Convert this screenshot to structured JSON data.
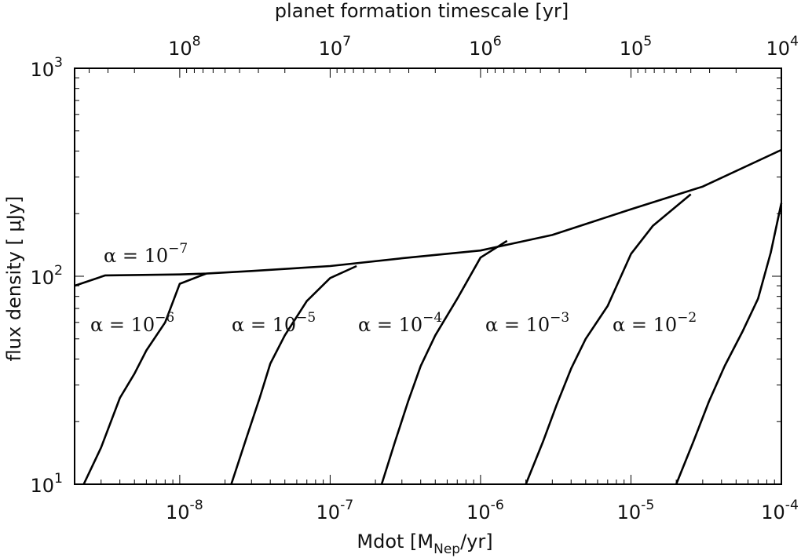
{
  "chart_data": {
    "type": "line",
    "x_axis": {
      "label": "Mdot [M_Nep/yr]",
      "label_main": "Mdot [M",
      "label_sub": "Nep",
      "label_tail": "/yr]",
      "scale": "log",
      "range": [
        2e-09,
        0.0001
      ],
      "ticks": [
        {
          "value": 1e-08,
          "base": "10",
          "exp": "-8"
        },
        {
          "value": 1e-07,
          "base": "10",
          "exp": "-7"
        },
        {
          "value": 1e-06,
          "base": "10",
          "exp": "-6"
        },
        {
          "value": 1e-05,
          "base": "10",
          "exp": "-5"
        },
        {
          "value": 0.0001,
          "base": "10",
          "exp": "-4"
        }
      ]
    },
    "x2_axis": {
      "label": "planet formation timescale [yr]",
      "scale": "log",
      "ticks": [
        {
          "value": 100000000.0,
          "base": "10",
          "exp": "8"
        },
        {
          "value": 10000000.0,
          "base": "10",
          "exp": "7"
        },
        {
          "value": 1000000.0,
          "base": "10",
          "exp": "6"
        },
        {
          "value": 100000.0,
          "base": "10",
          "exp": "5"
        },
        {
          "value": 10000.0,
          "base": "10",
          "exp": "4"
        }
      ]
    },
    "y_axis": {
      "label": "flux density [ μJy]",
      "scale": "log",
      "range": [
        10,
        1000
      ],
      "ticks": [
        {
          "value": 10,
          "base": "10",
          "exp": "1"
        },
        {
          "value": 100,
          "base": "10",
          "exp": "2"
        },
        {
          "value": 1000,
          "base": "10",
          "exp": "3"
        }
      ]
    },
    "grid": false,
    "series": [
      {
        "name": "α = 10^-7",
        "label_exp": "-7",
        "points": [
          [
            2e-09,
            90
          ],
          [
            3.2e-09,
            101
          ],
          [
            1e-08,
            102
          ],
          [
            1.5e-08,
            103
          ],
          [
            3e-08,
            106
          ],
          [
            1e-07,
            112
          ],
          [
            3e-07,
            122
          ],
          [
            1e-06,
            133
          ],
          [
            3e-06,
            158
          ],
          [
            1e-05,
            210
          ],
          [
            3e-05,
            270
          ],
          [
            0.0001,
            405
          ]
        ]
      },
      {
        "name": "α = 10^-6",
        "label_exp": "-6",
        "points": [
          [
            2.3e-09,
            10
          ],
          [
            3e-09,
            15
          ],
          [
            4e-09,
            26
          ],
          [
            5e-09,
            34
          ],
          [
            6e-09,
            44
          ],
          [
            8e-09,
            60
          ],
          [
            1e-08,
            92
          ],
          [
            1.5e-08,
            103
          ]
        ]
      },
      {
        "name": "α = 10^-5",
        "label_exp": "-5",
        "points": [
          [
            2.2e-08,
            10
          ],
          [
            2.8e-08,
            17
          ],
          [
            3.4e-08,
            26
          ],
          [
            4e-08,
            38
          ],
          [
            5e-08,
            52
          ],
          [
            7e-08,
            76
          ],
          [
            1e-07,
            98
          ],
          [
            1.5e-07,
            112
          ]
        ]
      },
      {
        "name": "α = 10^-4",
        "label_exp": "-4",
        "points": [
          [
            2.2e-07,
            10
          ],
          [
            2.7e-07,
            16
          ],
          [
            3.3e-07,
            25
          ],
          [
            4e-07,
            37
          ],
          [
            5e-07,
            52
          ],
          [
            7e-07,
            78
          ],
          [
            1e-06,
            123
          ],
          [
            1.5e-06,
            148
          ]
        ]
      },
      {
        "name": "α = 10^-3",
        "label_exp": "-3",
        "points": [
          [
            2e-06,
            10
          ],
          [
            2.6e-06,
            16
          ],
          [
            3.2e-06,
            24
          ],
          [
            4e-06,
            36
          ],
          [
            5e-06,
            50
          ],
          [
            7e-06,
            72
          ],
          [
            1e-05,
            128
          ],
          [
            1.4e-05,
            175
          ],
          [
            2.5e-05,
            248
          ]
        ]
      },
      {
        "name": "α = 10^-2",
        "label_exp": "-2",
        "points": [
          [
            2e-05,
            10
          ],
          [
            2.6e-05,
            16
          ],
          [
            3.3e-05,
            25
          ],
          [
            4.2e-05,
            37
          ],
          [
            5.5e-05,
            54
          ],
          [
            7e-05,
            78
          ],
          [
            8.5e-05,
            130
          ],
          [
            0.0001,
            225
          ]
        ]
      }
    ]
  }
}
